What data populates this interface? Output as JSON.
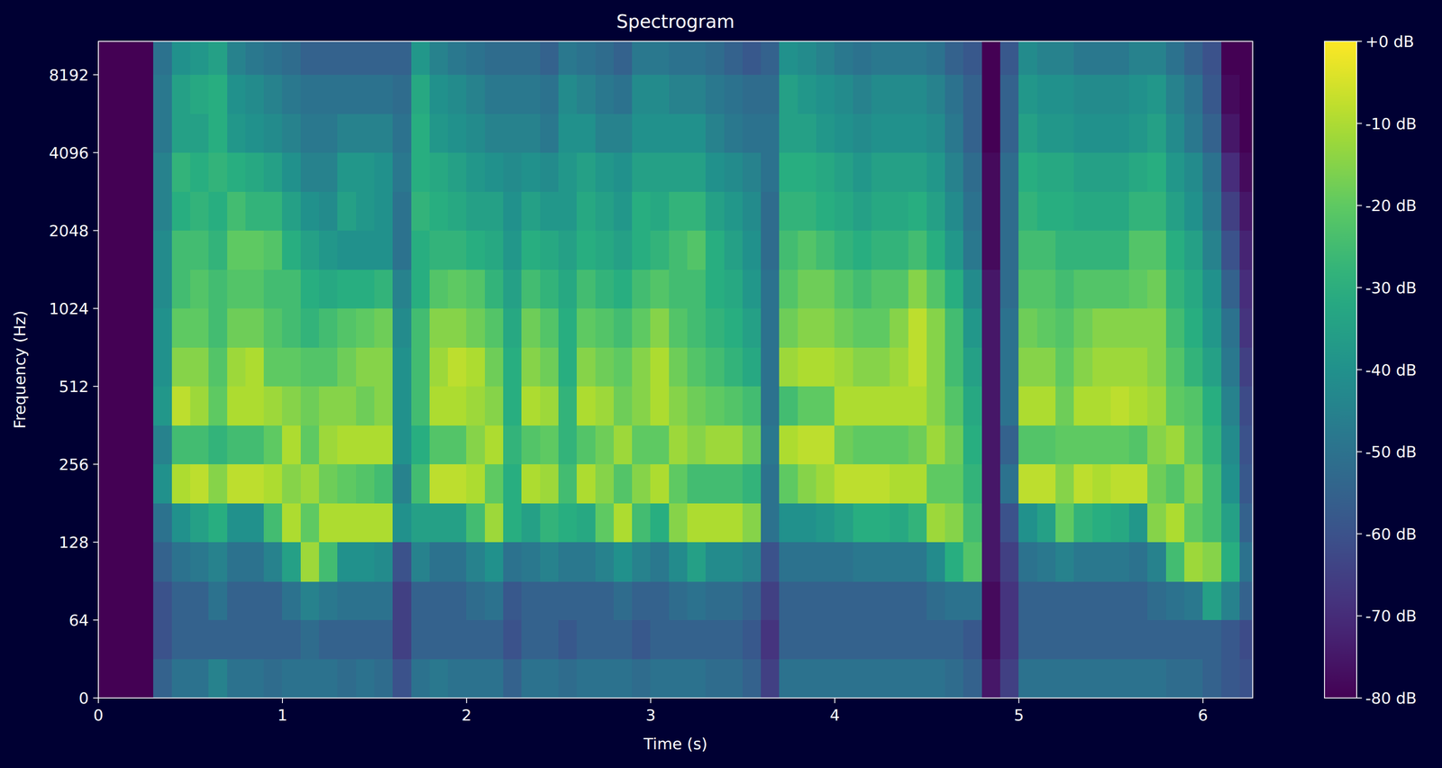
{
  "chart_data": {
    "type": "heatmap",
    "title": "Spectrogram",
    "x_label": "Time (s)",
    "y_label": "Frequency (Hz)",
    "log": "y",
    "xlim": [
      0,
      6.27
    ],
    "ylim": [
      0,
      11025
    ],
    "xticks": [
      0,
      1,
      2,
      3,
      4,
      5,
      6
    ],
    "yticks": [
      0,
      64,
      128,
      256,
      512,
      1024,
      2048,
      4096,
      8192
    ],
    "x": [
      0,
      0.1,
      0.2,
      0.3,
      0.4,
      0.5,
      0.6,
      0.7,
      0.8,
      0.9,
      1.0,
      1.1,
      1.2,
      1.3,
      1.4,
      1.5,
      1.6,
      1.7,
      1.8,
      1.9,
      2.0,
      2.1,
      2.2,
      2.3,
      2.4,
      2.5,
      2.6,
      2.7,
      2.8,
      2.9,
      3.0,
      3.1,
      3.2,
      3.3,
      3.4,
      3.5,
      3.6,
      3.7,
      3.8,
      3.9,
      4.0,
      4.1,
      4.2,
      4.3,
      4.4,
      4.5,
      4.6,
      4.7,
      4.8,
      4.9,
      5.0,
      5.1,
      5.2,
      5.3,
      5.4,
      5.5,
      5.6,
      5.7,
      5.8,
      5.9,
      6.0,
      6.1,
      6.2,
      6.27
    ],
    "y": [
      0,
      32,
      64,
      90,
      128,
      181,
      256,
      362,
      512,
      724,
      1024,
      1448,
      2048,
      2896,
      4096,
      5793,
      8192,
      11025
    ],
    "values": [
      [
        -80,
        -80,
        -80,
        -80,
        -80,
        -80,
        -80,
        -80,
        -80,
        -80,
        -80,
        -80,
        -80,
        -80,
        -80,
        -80,
        -80
      ],
      [
        -80,
        -80,
        -80,
        -80,
        -80,
        -80,
        -80,
        -80,
        -80,
        -80,
        -80,
        -80,
        -80,
        -80,
        -80,
        -80,
        -80
      ],
      [
        -80,
        -80,
        -80,
        -80,
        -80,
        -80,
        -80,
        -80,
        -80,
        -80,
        -80,
        -80,
        -80,
        -80,
        -80,
        -80,
        -80
      ],
      [
        -55,
        -60,
        -60,
        -55,
        -50,
        -40,
        -45,
        -38,
        -40,
        -40,
        -42,
        -42,
        -45,
        -45,
        -48,
        -48,
        -50
      ],
      [
        -50,
        -55,
        -55,
        -50,
        -40,
        -10,
        -25,
        -8,
        -15,
        -20,
        -25,
        -25,
        -30,
        -28,
        -35,
        -35,
        -40
      ],
      [
        -50,
        -55,
        -55,
        -48,
        -35,
        -8,
        -25,
        -12,
        -15,
        -20,
        -22,
        -25,
        -28,
        -30,
        -35,
        -32,
        -38
      ],
      [
        -45,
        -55,
        -50,
        -45,
        -30,
        -15,
        -28,
        -20,
        -22,
        -25,
        -25,
        -28,
        -30,
        -28,
        -30,
        -30,
        -35
      ],
      [
        -50,
        -55,
        -55,
        -50,
        -40,
        -8,
        -25,
        -10,
        -12,
        -18,
        -22,
        -20,
        -25,
        -30,
        -38,
        -40,
        -45
      ],
      [
        -50,
        -55,
        -55,
        -50,
        -40,
        -8,
        -25,
        -10,
        -10,
        -18,
        -22,
        -20,
        -28,
        -32,
        -40,
        -42,
        -48
      ],
      [
        -52,
        -55,
        -55,
        -45,
        -25,
        -10,
        -20,
        -12,
        -20,
        -22,
        -25,
        -22,
        -28,
        -35,
        -42,
        -45,
        -50
      ],
      [
        -50,
        -55,
        -50,
        -35,
        -10,
        -15,
        -10,
        -15,
        -20,
        -25,
        -25,
        -30,
        -35,
        -40,
        -45,
        -48,
        -52
      ],
      [
        -50,
        -52,
        -45,
        -12,
        -20,
        -12,
        -20,
        -18,
        -22,
        -28,
        -30,
        -35,
        -40,
        -45,
        -48,
        -50,
        -55
      ],
      [
        -50,
        -55,
        -48,
        -25,
        -10,
        -18,
        -12,
        -15,
        -22,
        -25,
        -32,
        -38,
        -42,
        -45,
        -48,
        -50,
        -55
      ],
      [
        -52,
        -55,
        -50,
        -40,
        -10,
        -20,
        -10,
        -15,
        -18,
        -22,
        -30,
        -40,
        -35,
        -38,
        -45,
        -50,
        -55
      ],
      [
        -50,
        -55,
        -50,
        -40,
        -10,
        -22,
        -10,
        -18,
        -15,
        -20,
        -30,
        -40,
        -38,
        -38,
        -45,
        -50,
        -55
      ],
      [
        -52,
        -55,
        -50,
        -42,
        -10,
        -25,
        -10,
        -15,
        -15,
        -18,
        -28,
        -40,
        -40,
        -40,
        -45,
        -50,
        -55
      ],
      [
        -60,
        -65,
        -65,
        -60,
        -40,
        -45,
        -40,
        -40,
        -40,
        -42,
        -45,
        -50,
        -50,
        -48,
        -50,
        -52,
        -55
      ],
      [
        -50,
        -55,
        -55,
        -45,
        -35,
        -25,
        -30,
        -25,
        -25,
        -25,
        -30,
        -30,
        -28,
        -30,
        -30,
        -32,
        -38
      ],
      [
        -48,
        -55,
        -55,
        -50,
        -35,
        -8,
        -22,
        -10,
        -12,
        -15,
        -22,
        -28,
        -30,
        -32,
        -38,
        -40,
        -45
      ],
      [
        -50,
        -55,
        -55,
        -50,
        -35,
        -8,
        -22,
        -10,
        -8,
        -15,
        -20,
        -28,
        -32,
        -35,
        -40,
        -42,
        -48
      ],
      [
        -50,
        -55,
        -52,
        -45,
        -25,
        -10,
        -15,
        -12,
        -10,
        -18,
        -22,
        -30,
        -35,
        -38,
        -42,
        -45,
        -50
      ],
      [
        -50,
        -55,
        -50,
        -40,
        -12,
        -20,
        -10,
        -15,
        -18,
        -22,
        -28,
        -32,
        -35,
        -40,
        -45,
        -48,
        -52
      ],
      [
        -55,
        -60,
        -58,
        -50,
        -30,
        -30,
        -28,
        -30,
        -30,
        -32,
        -35,
        -38,
        -40,
        -42,
        -45,
        -48,
        -52
      ],
      [
        -50,
        -55,
        -55,
        -48,
        -35,
        -10,
        -22,
        -10,
        -15,
        -18,
        -25,
        -30,
        -35,
        -40,
        -45,
        -48,
        -52
      ],
      [
        -50,
        -55,
        -55,
        -45,
        -28,
        -12,
        -20,
        -12,
        -18,
        -22,
        -28,
        -32,
        -38,
        -42,
        -48,
        -50,
        -55
      ],
      [
        -52,
        -58,
        -55,
        -48,
        -30,
        -25,
        -28,
        -28,
        -30,
        -30,
        -32,
        -35,
        -38,
        -38,
        -40,
        -42,
        -48
      ],
      [
        -50,
        -55,
        -55,
        -48,
        -32,
        -10,
        -22,
        -10,
        -15,
        -20,
        -25,
        -30,
        -32,
        -35,
        -40,
        -45,
        -50
      ],
      [
        -50,
        -55,
        -55,
        -45,
        -20,
        -15,
        -18,
        -12,
        -18,
        -22,
        -28,
        -32,
        -35,
        -38,
        -45,
        -48,
        -52
      ],
      [
        -50,
        -55,
        -52,
        -40,
        -10,
        -22,
        -12,
        -18,
        -20,
        -25,
        -30,
        -35,
        -38,
        -40,
        -45,
        -50,
        -55
      ],
      [
        -52,
        -58,
        -55,
        -45,
        -25,
        -15,
        -20,
        -15,
        -15,
        -20,
        -25,
        -30,
        -30,
        -35,
        -40,
        -42,
        -48
      ],
      [
        -50,
        -55,
        -55,
        -48,
        -30,
        -10,
        -20,
        -10,
        -10,
        -15,
        -22,
        -28,
        -32,
        -35,
        -40,
        -42,
        -48
      ],
      [
        -50,
        -55,
        -52,
        -42,
        -15,
        -20,
        -12,
        -15,
        -18,
        -22,
        -25,
        -25,
        -28,
        -35,
        -40,
        -45,
        -50
      ],
      [
        -50,
        -55,
        -50,
        -35,
        -10,
        -25,
        -15,
        -18,
        -22,
        -25,
        -25,
        -22,
        -28,
        -35,
        -40,
        -45,
        -50
      ],
      [
        -52,
        -55,
        -52,
        -42,
        -10,
        -25,
        -12,
        -20,
        -25,
        -28,
        -30,
        -30,
        -35,
        -40,
        -45,
        -48,
        -52
      ],
      [
        -52,
        -55,
        -52,
        -42,
        -10,
        -25,
        -12,
        -22,
        -28,
        -30,
        -32,
        -35,
        -38,
        -42,
        -48,
        -50,
        -55
      ],
      [
        -55,
        -58,
        -55,
        -45,
        -15,
        -28,
        -18,
        -25,
        -32,
        -35,
        -38,
        -40,
        -42,
        -45,
        -50,
        -52,
        -58
      ],
      [
        -65,
        -68,
        -65,
        -60,
        -50,
        -50,
        -48,
        -50,
        -50,
        -50,
        -50,
        -52,
        -52,
        -50,
        -50,
        -52,
        -55
      ],
      [
        -50,
        -55,
        -55,
        -50,
        -40,
        -20,
        -10,
        -25,
        -12,
        -18,
        -22,
        -25,
        -28,
        -30,
        -35,
        -35,
        -40
      ],
      [
        -50,
        -55,
        -55,
        -50,
        -40,
        -15,
        -8,
        -20,
        -10,
        -15,
        -18,
        -22,
        -28,
        -30,
        -35,
        -38,
        -42
      ],
      [
        -50,
        -55,
        -55,
        -50,
        -38,
        -12,
        -8,
        -20,
        -10,
        -15,
        -18,
        -25,
        -30,
        -32,
        -38,
        -40,
        -45
      ],
      [
        -50,
        -55,
        -55,
        -50,
        -35,
        -8,
        -18,
        -10,
        -12,
        -18,
        -22,
        -28,
        -32,
        -35,
        -40,
        -42,
        -48
      ],
      [
        -50,
        -55,
        -55,
        -48,
        -30,
        -8,
        -20,
        -10,
        -15,
        -20,
        -25,
        -30,
        -35,
        -38,
        -42,
        -45,
        -50
      ],
      [
        -50,
        -55,
        -55,
        -48,
        -30,
        -8,
        -20,
        -10,
        -15,
        -20,
        -22,
        -28,
        -32,
        -35,
        -40,
        -42,
        -48
      ],
      [
        -50,
        -55,
        -55,
        -48,
        -32,
        -10,
        -20,
        -10,
        -12,
        -15,
        -22,
        -28,
        -32,
        -35,
        -40,
        -42,
        -48
      ],
      [
        -50,
        -55,
        -55,
        -48,
        -28,
        -10,
        -18,
        -10,
        -8,
        -8,
        -15,
        -25,
        -30,
        -35,
        -40,
        -42,
        -48
      ],
      [
        -50,
        -55,
        -52,
        -42,
        -12,
        -20,
        -12,
        -15,
        -15,
        -15,
        -22,
        -30,
        -35,
        -38,
        -42,
        -45,
        -50
      ],
      [
        -52,
        -55,
        -50,
        -30,
        -15,
        -20,
        -18,
        -22,
        -25,
        -25,
        -30,
        -38,
        -42,
        -45,
        -48,
        -50,
        -55
      ],
      [
        -55,
        -58,
        -50,
        -22,
        -25,
        -28,
        -30,
        -32,
        -35,
        -38,
        -42,
        -48,
        -50,
        -52,
        -55,
        -55,
        -58
      ],
      [
        -75,
        -78,
        -78,
        -75,
        -75,
        -75,
        -75,
        -75,
        -75,
        -75,
        -75,
        -78,
        -78,
        -78,
        -80,
        -80,
        -80
      ],
      [
        -65,
        -68,
        -68,
        -65,
        -60,
        -50,
        -55,
        -50,
        -50,
        -50,
        -52,
        -52,
        -52,
        -52,
        -55,
        -55,
        -58
      ],
      [
        -50,
        -55,
        -55,
        -50,
        -40,
        -8,
        -22,
        -10,
        -15,
        -18,
        -22,
        -25,
        -28,
        -30,
        -35,
        -38,
        -42
      ],
      [
        -50,
        -55,
        -55,
        -48,
        -35,
        -8,
        -22,
        -10,
        -15,
        -20,
        -22,
        -25,
        -30,
        -32,
        -38,
        -40,
        -45
      ],
      [
        -50,
        -55,
        -55,
        -45,
        -20,
        -15,
        -20,
        -18,
        -20,
        -22,
        -25,
        -28,
        -30,
        -32,
        -38,
        -40,
        -45
      ],
      [
        -50,
        -55,
        -55,
        -48,
        -28,
        -8,
        -20,
        -10,
        -15,
        -18,
        -22,
        -28,
        -32,
        -35,
        -40,
        -42,
        -48
      ],
      [
        -50,
        -55,
        -55,
        -48,
        -30,
        -10,
        -20,
        -10,
        -12,
        -15,
        -22,
        -28,
        -32,
        -35,
        -40,
        -42,
        -48
      ],
      [
        -50,
        -55,
        -55,
        -48,
        -32,
        -8,
        -20,
        -8,
        -12,
        -15,
        -22,
        -28,
        -32,
        -35,
        -40,
        -42,
        -48
      ],
      [
        -50,
        -55,
        -55,
        -50,
        -38,
        -8,
        -22,
        -10,
        -12,
        -15,
        -20,
        -22,
        -28,
        -32,
        -38,
        -40,
        -45
      ],
      [
        -50,
        -55,
        -52,
        -45,
        -15,
        -18,
        -15,
        -12,
        -15,
        -15,
        -18,
        -22,
        -28,
        -30,
        -35,
        -38,
        -45
      ],
      [
        -52,
        -55,
        -50,
        -25,
        -10,
        -22,
        -12,
        -20,
        -22,
        -25,
        -28,
        -30,
        -35,
        -38,
        -42,
        -45,
        -50
      ],
      [
        -52,
        -55,
        -48,
        -12,
        -20,
        -15,
        -20,
        -22,
        -28,
        -30,
        -32,
        -35,
        -40,
        -42,
        -48,
        -50,
        -55
      ],
      [
        -55,
        -55,
        -35,
        -15,
        -25,
        -25,
        -28,
        -30,
        -35,
        -38,
        -40,
        -45,
        -48,
        -50,
        -55,
        -58,
        -60
      ],
      [
        -58,
        -58,
        -45,
        -30,
        -35,
        -40,
        -42,
        -45,
        -48,
        -50,
        -55,
        -60,
        -65,
        -70,
        -75,
        -78,
        -80
      ],
      [
        -60,
        -62,
        -55,
        -50,
        -55,
        -58,
        -60,
        -62,
        -65,
        -68,
        -70,
        -72,
        -75,
        -78,
        -80,
        -80,
        -80
      ]
    ],
    "colorbar": {
      "range": [
        -80,
        0
      ],
      "ticks": [
        {
          "value": 0,
          "label": "+0 dB"
        },
        {
          "value": -10,
          "label": "-10 dB"
        },
        {
          "value": -20,
          "label": "-20 dB"
        },
        {
          "value": -30,
          "label": "-30 dB"
        },
        {
          "value": -40,
          "label": "-40 dB"
        },
        {
          "value": -50,
          "label": "-50 dB"
        },
        {
          "value": -60,
          "label": "-60 dB"
        },
        {
          "value": -70,
          "label": "-70 dB"
        },
        {
          "value": -80,
          "label": "-80 dB"
        }
      ]
    }
  }
}
